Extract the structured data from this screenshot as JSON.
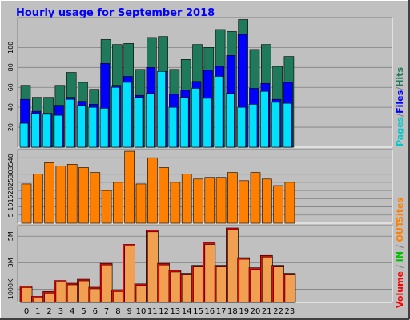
{
  "chart_data": [
    {
      "type": "bar",
      "title": "Hourly usage for September 2018",
      "categories": [
        "0",
        "1",
        "2",
        "3",
        "4",
        "5",
        "6",
        "7",
        "8",
        "9",
        "10",
        "11",
        "12",
        "13",
        "14",
        "15",
        "16",
        "17",
        "18",
        "19",
        "20",
        "21",
        "22",
        "23"
      ],
      "y_ticks": [
        "20",
        "40",
        "60",
        "80",
        "100"
      ],
      "ylim": [
        0,
        130
      ],
      "legend": [
        "Pages",
        "Files",
        "Hits"
      ],
      "series": [
        {
          "name": "Hits",
          "color": "#1E7A5A",
          "values": [
            62,
            50,
            50,
            62,
            75,
            65,
            58,
            108,
            103,
            104,
            78,
            110,
            111,
            78,
            88,
            103,
            100,
            118,
            116,
            128,
            98,
            103,
            81,
            91
          ]
        },
        {
          "name": "Files",
          "color": "#0000FF",
          "values": [
            48,
            36,
            34,
            42,
            50,
            46,
            43,
            84,
            62,
            71,
            52,
            80,
            76,
            53,
            57,
            66,
            77,
            81,
            92,
            113,
            59,
            64,
            48,
            65
          ]
        },
        {
          "name": "Pages",
          "color": "#00E0FF",
          "values": [
            24,
            34,
            33,
            32,
            48,
            42,
            40,
            39,
            60,
            65,
            50,
            54,
            76,
            40,
            50,
            59,
            49,
            71,
            54,
            40,
            43,
            56,
            45,
            44
          ]
        }
      ]
    },
    {
      "type": "bar",
      "categories": [
        "0",
        "1",
        "2",
        "3",
        "4",
        "5",
        "6",
        "7",
        "8",
        "9",
        "10",
        "11",
        "12",
        "13",
        "14",
        "15",
        "16",
        "17",
        "18",
        "19",
        "20",
        "21",
        "22",
        "23"
      ],
      "y_ticks": [
        "5",
        "10",
        "15",
        "20",
        "25",
        "30",
        "35",
        "40"
      ],
      "ylim": [
        0,
        45
      ],
      "legend": [
        "Sites"
      ],
      "series": [
        {
          "name": "Sites",
          "color": "#FF8000",
          "values": [
            24,
            30,
            37,
            35,
            36,
            34,
            31,
            20,
            25,
            44,
            24,
            40,
            34,
            25,
            30,
            27,
            28,
            28,
            31,
            26,
            31,
            27,
            23,
            25
          ]
        }
      ]
    },
    {
      "type": "bar",
      "categories": [
        "0",
        "1",
        "2",
        "3",
        "4",
        "5",
        "6",
        "7",
        "8",
        "9",
        "10",
        "11",
        "12",
        "13",
        "14",
        "15",
        "16",
        "17",
        "18",
        "19",
        "20",
        "21",
        "22",
        "23"
      ],
      "y_ticks": [
        "1000K",
        "3M",
        "5M"
      ],
      "ylim": [
        0,
        5.8
      ],
      "legend": [
        "Volume",
        "IN",
        "OUT"
      ],
      "series": [
        {
          "name": "Volume",
          "color": "#FF0000",
          "values": [
            1.25,
            0.45,
            0.83,
            1.65,
            1.45,
            1.75,
            1.15,
            2.95,
            0.95,
            4.38,
            1.4,
            5.45,
            2.95,
            2.42,
            2.2,
            2.8,
            4.5,
            2.8,
            5.62,
            3.38,
            2.62,
            3.55,
            2.8,
            2.2
          ]
        }
      ]
    }
  ],
  "side_labels": {
    "pages": "Pages",
    "files": "Files",
    "hits": "Hits",
    "sites": "Sites",
    "volume": "Volume",
    "in": "IN",
    "out": "OUT",
    "sep": "/",
    "sep_space": " / "
  },
  "colors": {
    "background": "#C0C0C0",
    "title": "#0000FF",
    "panel": "#C0C0C0",
    "grid": "#808080",
    "outer_border": "#000000"
  }
}
